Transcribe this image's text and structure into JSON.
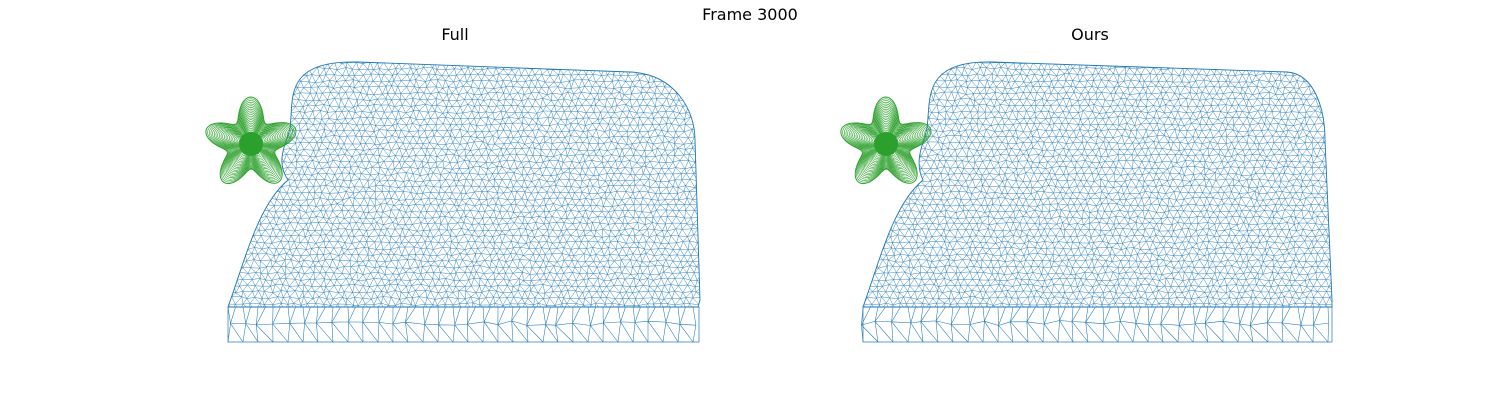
{
  "figure": {
    "title": "Frame 3000"
  },
  "panels": [
    {
      "title": "Full"
    },
    {
      "title": "Ours"
    }
  ],
  "colors": {
    "mesh": "#1f77b4",
    "star": "#2ca02c",
    "background": "#ffffff"
  }
}
